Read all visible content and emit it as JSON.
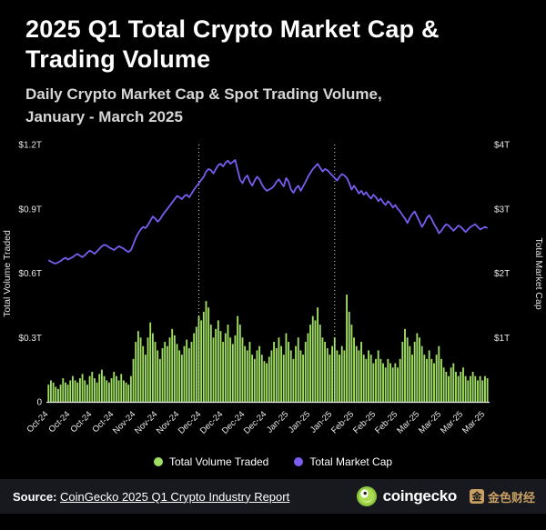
{
  "header": {
    "title": "2025 Q1 Total Crypto Market Cap & Trading Volume",
    "subtitle_line1": "Daily Crypto Market Cap & Spot Trading Volume,",
    "subtitle_line2": "January - March 2025"
  },
  "colors": {
    "background": "#000000",
    "bar_green": "#a0df63",
    "line_purple": "#7b5cf0",
    "axis_text": "#e9e9e9",
    "vline": "#d9e0d9",
    "footer_background": "#17191f",
    "gold": "#c8a064"
  },
  "chart_data": {
    "type": "bar+line",
    "title": "2025 Q1 Total Crypto Market Cap & Trading Volume",
    "x_unit": "day (Oct 2024 - Mar 2025)",
    "grid": false,
    "left_axis": {
      "label": "Total Volume Traded",
      "max": 1.2,
      "ticks": [
        {
          "v": 1.2,
          "label": "$1.2T"
        },
        {
          "v": 0.9,
          "label": "$0.9T"
        },
        {
          "v": 0.6,
          "label": "$0.6T"
        },
        {
          "v": 0.3,
          "label": "$0.3T"
        },
        {
          "v": 0,
          "label": "0"
        }
      ]
    },
    "right_axis": {
      "label": "Total Market Cap",
      "max": 4,
      "ticks": [
        {
          "v": 4,
          "label": "$4T"
        },
        {
          "v": 3,
          "label": "$3T"
        },
        {
          "v": 2,
          "label": "$2T"
        },
        {
          "v": 1,
          "label": "$1T"
        }
      ]
    },
    "x_tick_labels": [
      {
        "i": 0,
        "label": "Oct-24"
      },
      {
        "i": 9,
        "label": "Oct-24"
      },
      {
        "i": 18,
        "label": "Oct-24"
      },
      {
        "i": 27,
        "label": "Oct-24"
      },
      {
        "i": 36,
        "label": "Nov-24"
      },
      {
        "i": 45,
        "label": "Nov-24"
      },
      {
        "i": 54,
        "label": "Nov-24"
      },
      {
        "i": 63,
        "label": "Dec-24"
      },
      {
        "i": 72,
        "label": "Dec-24"
      },
      {
        "i": 81,
        "label": "Dec-24"
      },
      {
        "i": 90,
        "label": "Dec-24"
      },
      {
        "i": 99,
        "label": "Jan-25"
      },
      {
        "i": 108,
        "label": "Jan-25"
      },
      {
        "i": 117,
        "label": "Jan-25"
      },
      {
        "i": 126,
        "label": "Feb-25"
      },
      {
        "i": 135,
        "label": "Feb-25"
      },
      {
        "i": 144,
        "label": "Feb-25"
      },
      {
        "i": 153,
        "label": "Mar-25"
      },
      {
        "i": 162,
        "label": "Mar-25"
      },
      {
        "i": 171,
        "label": "Mar-25"
      },
      {
        "i": 180,
        "label": "Mar-25"
      }
    ],
    "vline_indices": [
      62,
      118
    ],
    "series": [
      {
        "name": "Total Volume Traded",
        "type": "bar",
        "axis": "left",
        "unit": "$T",
        "color": "#a0df63",
        "values": [
          0.08,
          0.1,
          0.09,
          0.07,
          0.06,
          0.08,
          0.11,
          0.09,
          0.08,
          0.1,
          0.12,
          0.1,
          0.09,
          0.11,
          0.13,
          0.1,
          0.08,
          0.12,
          0.14,
          0.11,
          0.09,
          0.13,
          0.15,
          0.12,
          0.1,
          0.09,
          0.11,
          0.14,
          0.12,
          0.1,
          0.13,
          0.1,
          0.09,
          0.08,
          0.12,
          0.2,
          0.28,
          0.33,
          0.3,
          0.26,
          0.22,
          0.3,
          0.37,
          0.32,
          0.28,
          0.24,
          0.2,
          0.25,
          0.28,
          0.26,
          0.3,
          0.34,
          0.31,
          0.27,
          0.24,
          0.22,
          0.26,
          0.29,
          0.25,
          0.28,
          0.32,
          0.35,
          0.4,
          0.38,
          0.42,
          0.47,
          0.44,
          0.36,
          0.3,
          0.34,
          0.38,
          0.33,
          0.28,
          0.32,
          0.36,
          0.3,
          0.27,
          0.31,
          0.4,
          0.36,
          0.3,
          0.26,
          0.24,
          0.28,
          0.22,
          0.2,
          0.24,
          0.26,
          0.22,
          0.19,
          0.18,
          0.21,
          0.24,
          0.28,
          0.25,
          0.3,
          0.26,
          0.22,
          0.32,
          0.28,
          0.24,
          0.2,
          0.26,
          0.3,
          0.24,
          0.22,
          0.28,
          0.32,
          0.36,
          0.4,
          0.38,
          0.44,
          0.36,
          0.3,
          0.28,
          0.25,
          0.22,
          0.26,
          0.3,
          0.24,
          0.22,
          0.26,
          0.24,
          0.5,
          0.42,
          0.36,
          0.3,
          0.26,
          0.24,
          0.28,
          0.22,
          0.2,
          0.24,
          0.22,
          0.18,
          0.2,
          0.24,
          0.2,
          0.18,
          0.16,
          0.2,
          0.18,
          0.16,
          0.18,
          0.16,
          0.2,
          0.28,
          0.34,
          0.3,
          0.26,
          0.22,
          0.28,
          0.32,
          0.3,
          0.26,
          0.22,
          0.2,
          0.24,
          0.2,
          0.18,
          0.22,
          0.26,
          0.2,
          0.16,
          0.14,
          0.12,
          0.16,
          0.18,
          0.14,
          0.12,
          0.14,
          0.16,
          0.12,
          0.1,
          0.12,
          0.14,
          0.12,
          0.1,
          0.12,
          0.1,
          0.12,
          0.11
        ]
      },
      {
        "name": "Total Market Cap",
        "type": "line",
        "axis": "right",
        "unit": "$T",
        "color": "#7b5cf0",
        "values": [
          2.2,
          2.18,
          2.16,
          2.15,
          2.17,
          2.19,
          2.22,
          2.24,
          2.21,
          2.23,
          2.25,
          2.28,
          2.3,
          2.27,
          2.25,
          2.28,
          2.32,
          2.35,
          2.33,
          2.3,
          2.34,
          2.38,
          2.42,
          2.44,
          2.43,
          2.4,
          2.38,
          2.36,
          2.39,
          2.42,
          2.4,
          2.38,
          2.35,
          2.33,
          2.36,
          2.45,
          2.55,
          2.62,
          2.68,
          2.72,
          2.7,
          2.75,
          2.82,
          2.88,
          2.85,
          2.8,
          2.84,
          2.9,
          2.95,
          3.0,
          3.05,
          3.1,
          3.15,
          3.2,
          3.18,
          3.15,
          3.2,
          3.22,
          3.18,
          3.24,
          3.3,
          3.35,
          3.4,
          3.45,
          3.5,
          3.58,
          3.62,
          3.6,
          3.55,
          3.62,
          3.68,
          3.7,
          3.66,
          3.72,
          3.75,
          3.7,
          3.73,
          3.76,
          3.6,
          3.45,
          3.4,
          3.48,
          3.52,
          3.42,
          3.36,
          3.44,
          3.5,
          3.46,
          3.38,
          3.32,
          3.28,
          3.3,
          3.32,
          3.36,
          3.42,
          3.46,
          3.4,
          3.35,
          3.48,
          3.42,
          3.3,
          3.25,
          3.32,
          3.36,
          3.28,
          3.35,
          3.42,
          3.5,
          3.56,
          3.62,
          3.66,
          3.7,
          3.64,
          3.58,
          3.62,
          3.6,
          3.56,
          3.52,
          3.48,
          3.44,
          3.5,
          3.54,
          3.52,
          3.48,
          3.4,
          3.3,
          3.36,
          3.3,
          3.24,
          3.28,
          3.22,
          3.26,
          3.2,
          3.16,
          3.22,
          3.18,
          3.12,
          3.16,
          3.1,
          3.06,
          3.12,
          3.08,
          3.02,
          3.06,
          3.0,
          2.96,
          2.9,
          2.85,
          2.78,
          2.86,
          2.92,
          2.96,
          2.88,
          2.8,
          2.72,
          2.78,
          2.86,
          2.9,
          2.84,
          2.76,
          2.7,
          2.62,
          2.66,
          2.72,
          2.76,
          2.74,
          2.7,
          2.66,
          2.7,
          2.74,
          2.72,
          2.68,
          2.64,
          2.68,
          2.72,
          2.74,
          2.76,
          2.72,
          2.68,
          2.7,
          2.72,
          2.7
        ]
      }
    ]
  },
  "legend": {
    "items": [
      {
        "label": "Total Volume Traded",
        "color": "#a0df63"
      },
      {
        "label": "Total Market Cap",
        "color": "#7b5cf0"
      }
    ]
  },
  "footer": {
    "source_label": "Source:",
    "source_link": "CoinGecko 2025 Q1 Crypto Industry Report"
  },
  "branding": {
    "coingecko_text": "coingecko",
    "watermark_badge": "金",
    "watermark_text": "金色财经"
  }
}
